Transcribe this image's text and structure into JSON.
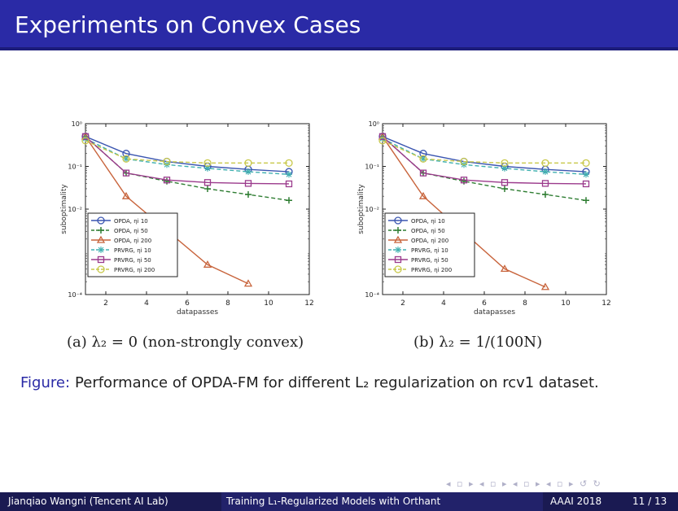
{
  "slide": {
    "title": "Experiments on Convex Cases",
    "figure_label": "Figure:",
    "figure_caption": "Performance of OPDA-FM for different L₂ regularization on rcv1 dataset.",
    "nav_symbols": "◂ ▫ ▸ ◂ ▫ ▸ ◂ ▫ ▸ ◂ ▫ ▸ ↺ ↻"
  },
  "footer": {
    "author": "Jianqiao Wangni  (Tencent AI Lab)",
    "talk_title": "Training L₁-Regularized Models with Orthant",
    "conference": "AAAI 2018",
    "page": "11 / 13"
  },
  "colors": {
    "title_bar": "#2a2aa6",
    "footer": "#1a1a52",
    "accent": "#2a2aa6"
  },
  "chart_data": [
    {
      "type": "line",
      "caption": "(a) λ₂ = 0 (non-strongly convex)",
      "xlabel": "datapasses",
      "ylabel": "suboptimality",
      "xlim": [
        1,
        12
      ],
      "xticks": [
        2,
        4,
        6,
        8,
        10,
        12
      ],
      "yscale": "log",
      "ylim": [
        0.0001,
        1
      ],
      "yticks": [
        {
          "value": 1,
          "label": "10⁰"
        },
        {
          "value": 0.1,
          "label": "10⁻¹"
        },
        {
          "value": 0.01,
          "label": "10⁻²"
        },
        {
          "value": 0.0001,
          "label": "10⁻⁴"
        }
      ],
      "legend_position": "bottom-left",
      "grid": false,
      "series": [
        {
          "name": "OPDA, ηi 10",
          "color": "#3a55b0",
          "marker": "circle",
          "dash": "solid",
          "x": [
            1,
            3,
            5,
            7,
            9,
            11
          ],
          "y": [
            0.5,
            0.2,
            0.13,
            0.1,
            0.085,
            0.075
          ]
        },
        {
          "name": "OPDA, ηi 50",
          "color": "#2e7d32",
          "marker": "plus",
          "dash": "dashed",
          "x": [
            1,
            3,
            5,
            7,
            9,
            11
          ],
          "y": [
            0.5,
            0.07,
            0.045,
            0.03,
            0.022,
            0.016
          ]
        },
        {
          "name": "OPDA, ηi 200",
          "color": "#c8643c",
          "marker": "triangle",
          "dash": "solid",
          "x": [
            1,
            3,
            7,
            9
          ],
          "y": [
            0.5,
            0.02,
            0.0005,
            0.00018
          ]
        },
        {
          "name": "PRVRG, ηi 10",
          "color": "#40b0b0",
          "marker": "star",
          "dash": "dashed",
          "x": [
            1,
            3,
            5,
            7,
            9,
            11
          ],
          "y": [
            0.45,
            0.15,
            0.11,
            0.09,
            0.075,
            0.065
          ]
        },
        {
          "name": "PRVRG, ηi 50",
          "color": "#9b3a8c",
          "marker": "square",
          "dash": "solid",
          "x": [
            1,
            3,
            5,
            7,
            9,
            11
          ],
          "y": [
            0.5,
            0.07,
            0.048,
            0.042,
            0.04,
            0.039
          ]
        },
        {
          "name": "PRVRG, ηi 200",
          "color": "#c8c84a",
          "marker": "circle",
          "dash": "dashed",
          "x": [
            1,
            3,
            5,
            7,
            9,
            11
          ],
          "y": [
            0.4,
            0.15,
            0.13,
            0.12,
            0.12,
            0.12
          ]
        }
      ]
    },
    {
      "type": "line",
      "caption": "(b) λ₂ = 1/(100N)",
      "xlabel": "datapasses",
      "ylabel": "suboptimality",
      "xlim": [
        1,
        12
      ],
      "xticks": [
        2,
        4,
        6,
        8,
        10,
        12
      ],
      "yscale": "log",
      "ylim": [
        0.0001,
        1
      ],
      "yticks": [
        {
          "value": 1,
          "label": "10⁰"
        },
        {
          "value": 0.1,
          "label": "10⁻¹"
        },
        {
          "value": 0.01,
          "label": "10⁻²"
        },
        {
          "value": 0.0001,
          "label": "10⁻⁴"
        }
      ],
      "legend_position": "bottom-left",
      "grid": false,
      "series": [
        {
          "name": "OPDA, ηi 10",
          "color": "#3a55b0",
          "marker": "circle",
          "dash": "solid",
          "x": [
            1,
            3,
            5,
            7,
            9,
            11
          ],
          "y": [
            0.5,
            0.2,
            0.13,
            0.1,
            0.085,
            0.075
          ]
        },
        {
          "name": "OPDA, ηi 50",
          "color": "#2e7d32",
          "marker": "plus",
          "dash": "dashed",
          "x": [
            1,
            3,
            5,
            7,
            9,
            11
          ],
          "y": [
            0.5,
            0.07,
            0.045,
            0.03,
            0.022,
            0.016
          ]
        },
        {
          "name": "OPDA, ηi 200",
          "color": "#c8643c",
          "marker": "triangle",
          "dash": "solid",
          "x": [
            1,
            3,
            7,
            9
          ],
          "y": [
            0.5,
            0.02,
            0.0004,
            0.00015
          ]
        },
        {
          "name": "PRVRG, ηi 10",
          "color": "#40b0b0",
          "marker": "star",
          "dash": "dashed",
          "x": [
            1,
            3,
            5,
            7,
            9,
            11
          ],
          "y": [
            0.45,
            0.15,
            0.11,
            0.09,
            0.075,
            0.065
          ]
        },
        {
          "name": "PRVRG, ηi 50",
          "color": "#9b3a8c",
          "marker": "square",
          "dash": "solid",
          "x": [
            1,
            3,
            5,
            7,
            9,
            11
          ],
          "y": [
            0.5,
            0.07,
            0.048,
            0.042,
            0.04,
            0.039
          ]
        },
        {
          "name": "PRVRG, ηi 200",
          "color": "#c8c84a",
          "marker": "circle",
          "dash": "dashed",
          "x": [
            1,
            3,
            5,
            7,
            9,
            11
          ],
          "y": [
            0.4,
            0.15,
            0.13,
            0.12,
            0.12,
            0.12
          ]
        }
      ]
    }
  ]
}
